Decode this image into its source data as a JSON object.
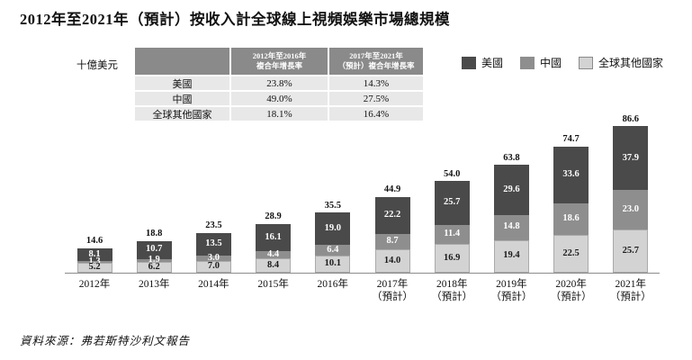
{
  "title": "2012年至2021年（預計）按收入計全球線上視頻娛樂市場總規模",
  "unit_label": "十億美元",
  "source": "資料來源：弗若斯特沙利文報告",
  "colors": {
    "us": "#4a4a4a",
    "china": "#8e8e8e",
    "other": "#d3d3d3",
    "table_header_bg": "#8a8a8a",
    "table_row_bg": "#e8e8e8",
    "axis": "#8c8c8c"
  },
  "legend": [
    {
      "label": "美國",
      "color": "#4a4a4a",
      "border": false
    },
    {
      "label": "中國",
      "color": "#8e8e8e",
      "border": false
    },
    {
      "label": "全球其他國家",
      "color": "#d3d3d3",
      "border": true
    }
  ],
  "growth_table": {
    "corner": "",
    "col_headers": [
      "2012年至2016年\n複合年增長率",
      "2017年至2021年\n（預計）複合年增長率"
    ],
    "rows": [
      [
        "美國",
        "23.8%",
        "14.3%"
      ],
      [
        "中國",
        "49.0%",
        "27.5%"
      ],
      [
        "全球其他國家",
        "18.1%",
        "16.4%"
      ]
    ]
  },
  "chart_data": {
    "type": "bar",
    "stacked": true,
    "title": "2012年至2021年（預計）按收入計全球線上視頻娛樂市場總規模",
    "xlabel": "",
    "ylabel": "十億美元",
    "categories": [
      "2012年",
      "2013年",
      "2014年",
      "2015年",
      "2016年",
      "2017年\n（預計）",
      "2018年\n（預計）",
      "2019年\n（預計）",
      "2020年\n（預計）",
      "2021年\n（預計）"
    ],
    "series": [
      {
        "name": "美國",
        "color": "#4a4a4a",
        "values": [
          8.1,
          10.7,
          13.5,
          16.1,
          19.0,
          22.2,
          25.7,
          29.6,
          33.6,
          37.9
        ]
      },
      {
        "name": "中國",
        "color": "#8e8e8e",
        "values": [
          1.3,
          1.9,
          3.0,
          4.4,
          6.4,
          8.7,
          11.4,
          14.8,
          18.6,
          23.0
        ]
      },
      {
        "name": "全球其他國家",
        "color": "#d3d3d3",
        "values": [
          5.2,
          6.2,
          7.0,
          8.4,
          10.1,
          14.0,
          16.9,
          19.4,
          22.5,
          25.7
        ]
      }
    ],
    "totals": [
      14.6,
      18.8,
      23.5,
      28.9,
      35.5,
      44.9,
      54.0,
      63.8,
      74.7,
      86.6
    ],
    "ylim": [
      0,
      90
    ],
    "grid": false,
    "y_axis_visible": false,
    "legend_position": "top-right"
  }
}
